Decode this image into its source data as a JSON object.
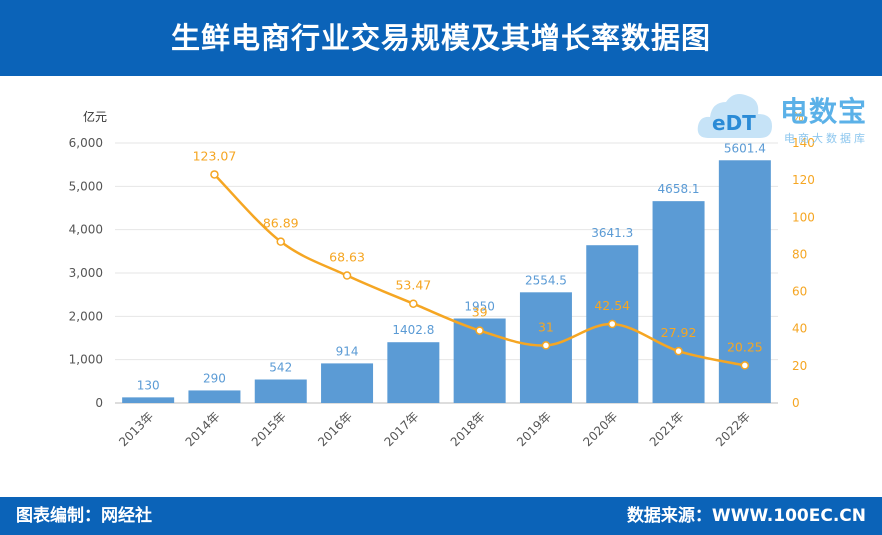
{
  "header": {
    "title": "生鲜电商行业交易规模及其增长率数据图"
  },
  "footer": {
    "left": "图表编制：网经社",
    "right": "数据来源：WWW.100EC.CN"
  },
  "logo": {
    "mark": "eDT",
    "name": "电数宝",
    "sub": "电商大数据库"
  },
  "colors": {
    "header_bg": "#0b63b8",
    "bar": "#5b9bd5",
    "line": "#f5a623",
    "axis_text": "#555555"
  },
  "chart_data": {
    "type": "bar",
    "categories": [
      "2013年",
      "2014年",
      "2015年",
      "2016年",
      "2017年",
      "2018年",
      "2019年",
      "2020年",
      "2021年",
      "2022年"
    ],
    "y_left_unit": "亿元",
    "y_right_unit": "%",
    "ylim_left": [
      0,
      6000
    ],
    "yticks_left": [
      "0",
      "1,000",
      "2,000",
      "3,000",
      "4,000",
      "5,000",
      "6,000"
    ],
    "ylim_right": [
      0,
      140
    ],
    "yticks_right": [
      "0",
      "20",
      "40",
      "60",
      "80",
      "100",
      "120",
      "140"
    ],
    "bars": {
      "values": [
        130,
        290,
        542,
        914,
        1402.8,
        1950,
        2554.5,
        3641.3,
        4658.1,
        5601.4
      ],
      "labels": [
        "130",
        "290",
        "542",
        "914",
        "1402.8",
        "1950",
        "2554.5",
        "3641.3",
        "4658.1",
        "5601.4"
      ]
    },
    "line": {
      "start_index": 1,
      "values": [
        123.07,
        86.89,
        68.63,
        53.47,
        39,
        31,
        42.54,
        27.92,
        20.25
      ],
      "labels": [
        "123.07",
        "86.89",
        "68.63",
        "53.47",
        "39",
        "31",
        "42.54",
        "27.92",
        "20.25"
      ]
    },
    "grid": true
  }
}
